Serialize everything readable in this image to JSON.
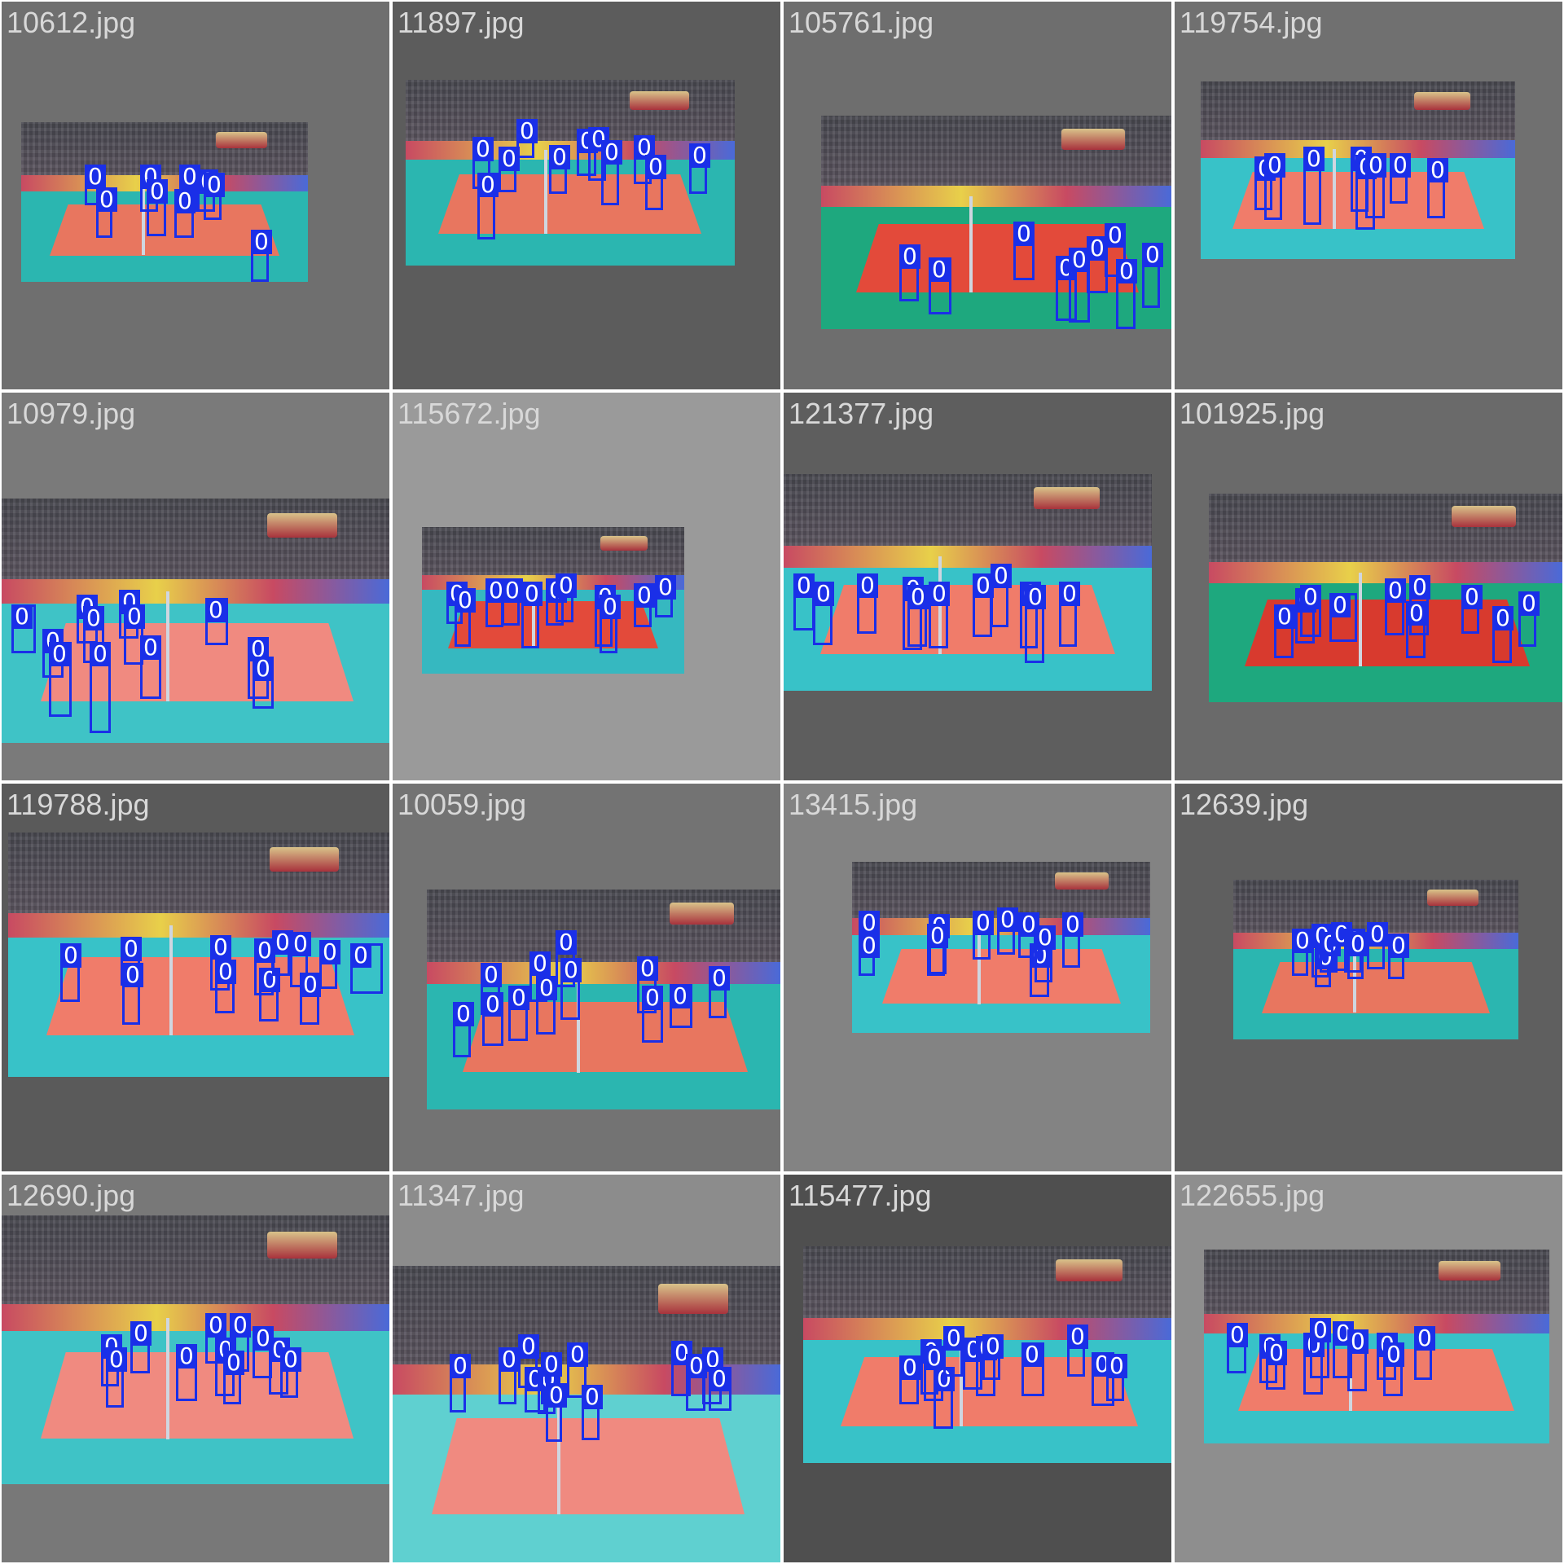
{
  "colors": {
    "box": "#1a2fe8",
    "box_text": "#ffffff",
    "label_text_dark_bg": "#d8d8d8"
  },
  "tiles": [
    {
      "file": "10612.jpg",
      "bg": "#6f6f6f",
      "court": "#e8765f",
      "floor": "#2bb6b0"
    },
    {
      "file": "11897.jpg",
      "bg": "#5c5c5c",
      "court": "#e8765f",
      "floor": "#2bb6b0"
    },
    {
      "file": "105761.jpg",
      "bg": "#6e6e6e",
      "court": "#e34a3a",
      "floor": "#1ea87e"
    },
    {
      "file": "119754.jpg",
      "bg": "#707070",
      "court": "#f07c6a",
      "floor": "#38c2c8"
    },
    {
      "file": "10979.jpg",
      "bg": "#7a7a7a",
      "court": "#f08a80",
      "floor": "#3fc3c6"
    },
    {
      "file": "115672.jpg",
      "bg": "#9a9a9a",
      "court": "#e34a3a",
      "floor": "#36b8c0"
    },
    {
      "file": "121377.jpg",
      "bg": "#5e5e5e",
      "court": "#f07c6a",
      "floor": "#38c2c8"
    },
    {
      "file": "101925.jpg",
      "bg": "#6a6a6a",
      "court": "#d83a2e",
      "floor": "#1ea87e"
    },
    {
      "file": "119788.jpg",
      "bg": "#5a5a5a",
      "court": "#f07c6a",
      "floor": "#38c2c8"
    },
    {
      "file": "10059.jpg",
      "bg": "#737373",
      "court": "#e8765f",
      "floor": "#2bb6b0"
    },
    {
      "file": "13415.jpg",
      "bg": "#838383",
      "court": "#f07c6a",
      "floor": "#38c2c8"
    },
    {
      "file": "12639.jpg",
      "bg": "#5f5f5f",
      "court": "#e8765f",
      "floor": "#2bb6b0"
    },
    {
      "file": "12690.jpg",
      "bg": "#787878",
      "court": "#f08a80",
      "floor": "#3fc3c6"
    },
    {
      "file": "11347.jpg",
      "bg": "#8c8c8c",
      "court": "#f08a80",
      "floor": "#5fd0d0"
    },
    {
      "file": "115477.jpg",
      "bg": "#4f4f4f",
      "court": "#f07c6a",
      "floor": "#38c2c8"
    },
    {
      "file": "122655.jpg",
      "bg": "#8e8e8e",
      "court": "#f07c6a",
      "floor": "#38c2c8"
    }
  ],
  "detection_label": "0"
}
